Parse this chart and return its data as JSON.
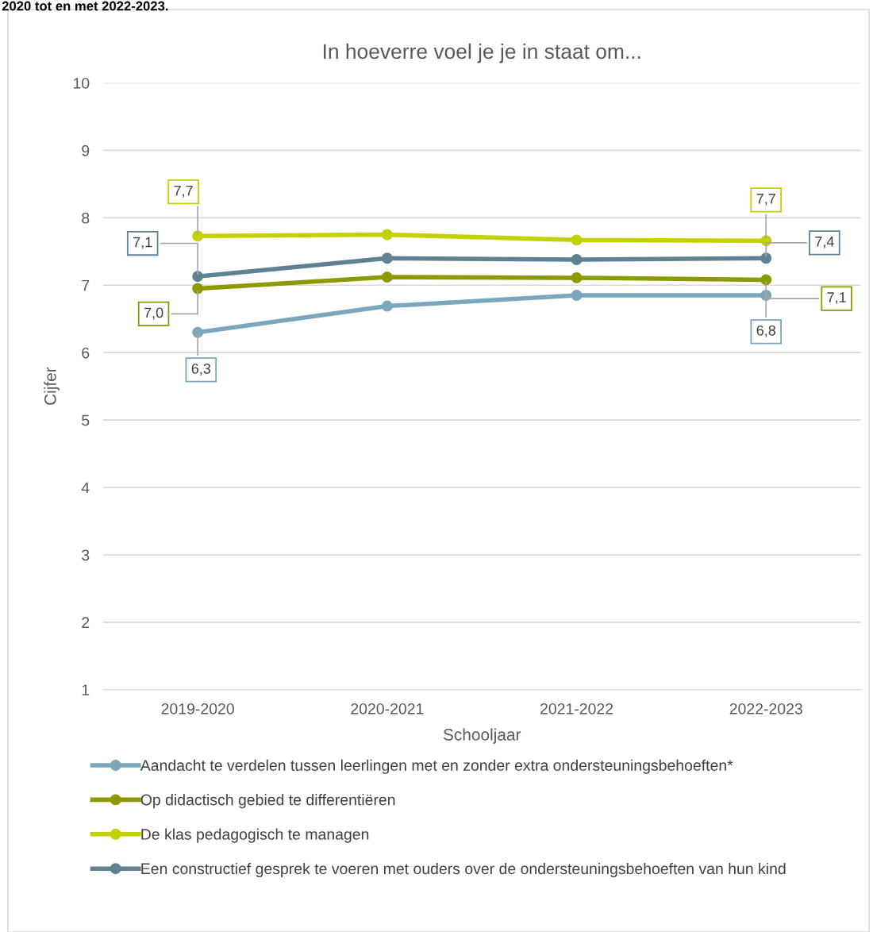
{
  "chart_data": {
    "type": "line",
    "title": "In hoeverre voel je je in staat om...",
    "xlabel": "Schooljaar",
    "ylabel": "Cijfer",
    "annotations": [
      "2020 tot en met 2022-2023."
    ],
    "categories": [
      "2019-2020",
      "2020-2021",
      "2021-2022",
      "2022-2023"
    ],
    "series": [
      {
        "name": "Aandacht te verdelen tussen leerlingen met en zonder extra ondersteuningsbehoeften*",
        "color": "#7aa7bb",
        "values": [
          6.3,
          6.69,
          6.85,
          6.85
        ],
        "value_labels": [
          "6,3",
          null,
          null,
          "6,8"
        ]
      },
      {
        "name": "Op didactisch gebied te differentiëren",
        "color": "#8c9a00",
        "values": [
          6.95,
          7.12,
          7.11,
          7.08
        ],
        "value_labels": [
          "7,0",
          null,
          null,
          "7,1"
        ]
      },
      {
        "name": "De klas pedagogisch te managen",
        "color": "#c3d100",
        "values": [
          7.73,
          7.75,
          7.67,
          7.66
        ],
        "value_labels": [
          "7,7",
          null,
          null,
          "7,7"
        ]
      },
      {
        "name": "Een constructief gesprek te voeren met ouders over de ondersteuningsbehoeften van hun kind",
        "color": "#5f8191",
        "values": [
          7.13,
          7.4,
          7.38,
          7.4
        ],
        "value_labels": [
          "7,1",
          null,
          null,
          "7,4"
        ]
      }
    ],
    "ylim": [
      1,
      10
    ],
    "yticks": [
      1,
      2,
      3,
      4,
      5,
      6,
      7,
      8,
      9,
      10
    ],
    "grid": "y",
    "legend": "bottom",
    "marker": "circle",
    "line_style": "solid"
  }
}
